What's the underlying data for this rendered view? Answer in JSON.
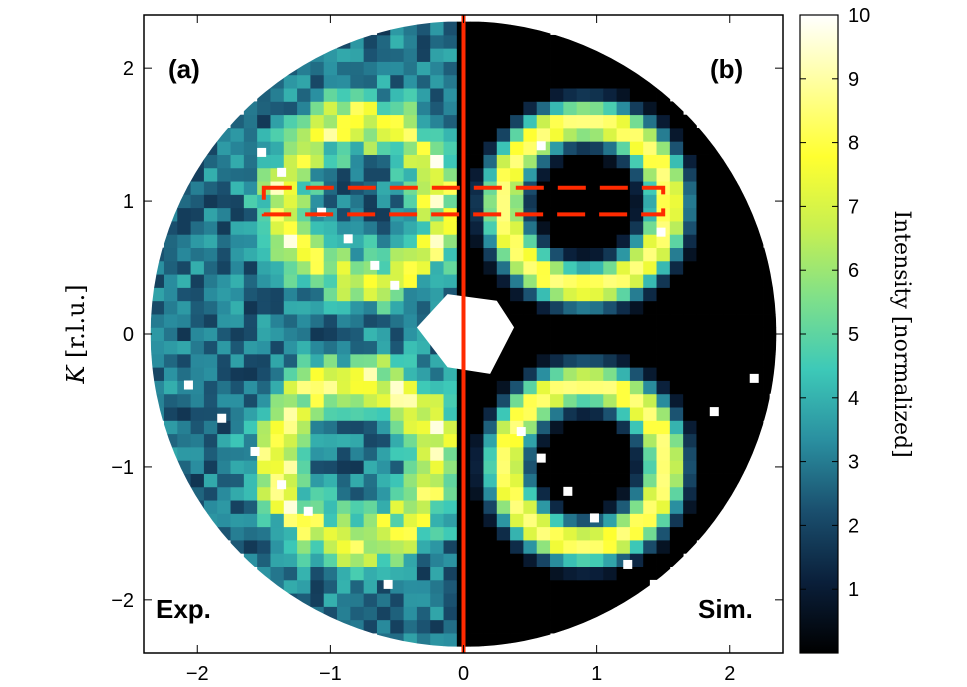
{
  "chart_data": {
    "type": "heatmap",
    "title": "",
    "xlabel": "",
    "ylabel": "K [r.l.u.]",
    "ylabel_italic_part": "K",
    "ylabel_rest": " [r.l.u.]",
    "xlim": [
      -2.4,
      2.4
    ],
    "ylim": [
      -2.4,
      2.4
    ],
    "x_ticks": [
      -2,
      -1,
      0,
      1,
      2
    ],
    "x_tick_labels": [
      "−2",
      "−1",
      "0",
      "1",
      "2"
    ],
    "y_ticks": [
      -2,
      -1,
      0,
      1,
      2
    ],
    "y_tick_labels": [
      "−2",
      "−1",
      "0",
      "1",
      "2"
    ],
    "grid": false,
    "detector_radius": 2.35,
    "divider_x": 0,
    "divider_color": "#ff2a00",
    "panels": [
      {
        "label": "(a)",
        "corner_label": "Exp.",
        "side": "left",
        "rings": [
          {
            "center": [
              -0.75,
              1.0
            ],
            "radius": 0.58
          },
          {
            "center": [
              -0.8,
              -0.95
            ],
            "radius": 0.6
          }
        ]
      },
      {
        "label": "(b)",
        "corner_label": "Sim.",
        "side": "right",
        "rings": [
          {
            "center": [
              0.92,
              0.98
            ],
            "radius": 0.62
          },
          {
            "center": [
              0.92,
              -0.98
            ],
            "radius": 0.6
          }
        ]
      }
    ],
    "cut_region": {
      "x": [
        -1.5,
        1.5
      ],
      "y": [
        0.9,
        1.1
      ],
      "style": "dashed",
      "color": "#ff2a00"
    },
    "colorbar": {
      "label": "Intensity [normalized]",
      "min": 0,
      "max": 10,
      "ticks": [
        1,
        2,
        3,
        4,
        5,
        6,
        7,
        8,
        9,
        10
      ],
      "tick_labels": [
        "1",
        "2",
        "3",
        "4",
        "5",
        "6",
        "7",
        "8",
        "9",
        "10"
      ],
      "colormap": [
        "#000000",
        "#0a1f3a",
        "#1a4f6e",
        "#2a8fa0",
        "#3dc9b8",
        "#7fe08a",
        "#c8f050",
        "#ffff30",
        "#ffff9a",
        "#ffffff"
      ]
    }
  }
}
